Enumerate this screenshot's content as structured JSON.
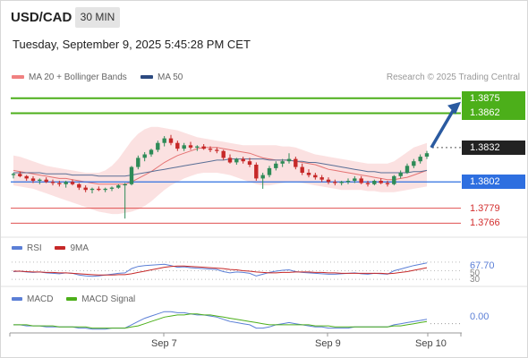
{
  "header": {
    "symbol": "USD/CAD",
    "timeframe": "30 MIN"
  },
  "datetime": "Tuesday, September 9, 2025 5:45:28 PM CET",
  "legend": {
    "bb": "MA 20 + Bollinger Bands",
    "ma50": "MA 50"
  },
  "credit": "Research © 2025 Trading Central",
  "colors": {
    "up": "#2e8b57",
    "down": "#c62828",
    "bands": "#f8c8c8",
    "ma20": "#e57373",
    "ma50": "#5a6f96",
    "resistance": "#4caf1a",
    "support": "#2e6fe0",
    "minor": "#e05050",
    "arrow": "#2a5aa0",
    "rsi": "#5b7fd6",
    "rsi_ma": "#c62828",
    "macd": "#5b7fd6",
    "macd_signal": "#4caf1a"
  },
  "levels": [
    {
      "value": "1.3875",
      "style": "resistance"
    },
    {
      "value": "1.3862",
      "style": "resistance"
    },
    {
      "value": "1.3832",
      "style": "current"
    },
    {
      "value": "1.3802",
      "style": "support"
    },
    {
      "value": "1.3779",
      "style": "minor"
    },
    {
      "value": "1.3766",
      "style": "minor"
    }
  ],
  "rsi": {
    "label": "RSI",
    "ma_label": "9MA",
    "value": "67.70",
    "ticks": [
      "50",
      "30"
    ]
  },
  "macd": {
    "label": "MACD",
    "signal_label": "MACD Signal",
    "value": "0.00"
  },
  "xaxis": {
    "ticks": [
      "Sep 7",
      "Sep 9",
      "Sep 10"
    ]
  },
  "chart_data": {
    "type": "candlestick",
    "title": "USD/CAD",
    "timeframe": "30 MIN",
    "ylim": [
      1.376,
      1.3885
    ],
    "candles": [
      [
        1.3808,
        1.381,
        1.3805,
        1.3809
      ],
      [
        1.3809,
        1.3811,
        1.3806,
        1.3807
      ],
      [
        1.3807,
        1.3808,
        1.3803,
        1.3805
      ],
      [
        1.3805,
        1.3807,
        1.3801,
        1.3803
      ],
      [
        1.3803,
        1.3805,
        1.38,
        1.3804
      ],
      [
        1.3804,
        1.3806,
        1.3801,
        1.3802
      ],
      [
        1.3802,
        1.3804,
        1.3799,
        1.3801
      ],
      [
        1.3801,
        1.3803,
        1.3798,
        1.38
      ],
      [
        1.38,
        1.3803,
        1.3797,
        1.3802
      ],
      [
        1.3802,
        1.3804,
        1.3799,
        1.38
      ],
      [
        1.38,
        1.3801,
        1.3795,
        1.3797
      ],
      [
        1.3797,
        1.3799,
        1.3793,
        1.3795
      ],
      [
        1.3795,
        1.3797,
        1.3792,
        1.3796
      ],
      [
        1.3796,
        1.3798,
        1.3794,
        1.3795
      ],
      [
        1.3795,
        1.3797,
        1.3793,
        1.3796
      ],
      [
        1.3796,
        1.3798,
        1.3794,
        1.3797
      ],
      [
        1.3797,
        1.38,
        1.3796,
        1.3799
      ],
      [
        1.3799,
        1.3801,
        1.377,
        1.38
      ],
      [
        1.38,
        1.3816,
        1.3799,
        1.3815
      ],
      [
        1.3815,
        1.3825,
        1.3813,
        1.3823
      ],
      [
        1.3823,
        1.3828,
        1.382,
        1.3826
      ],
      [
        1.3826,
        1.3831,
        1.3824,
        1.383
      ],
      [
        1.383,
        1.3838,
        1.3828,
        1.3836
      ],
      [
        1.3836,
        1.3842,
        1.3833,
        1.384
      ],
      [
        1.384,
        1.3843,
        1.3834,
        1.3836
      ],
      [
        1.3836,
        1.3838,
        1.3829,
        1.3831
      ],
      [
        1.3831,
        1.3836,
        1.3829,
        1.3834
      ],
      [
        1.3834,
        1.3837,
        1.383,
        1.3832
      ],
      [
        1.3832,
        1.3834,
        1.3829,
        1.3833
      ],
      [
        1.3833,
        1.3835,
        1.383,
        1.3831
      ],
      [
        1.3831,
        1.3833,
        1.3828,
        1.383
      ],
      [
        1.383,
        1.3832,
        1.3827,
        1.3829
      ],
      [
        1.3829,
        1.383,
        1.3821,
        1.3823
      ],
      [
        1.3823,
        1.3826,
        1.3818,
        1.3819
      ],
      [
        1.3819,
        1.3823,
        1.3817,
        1.3822
      ],
      [
        1.3822,
        1.3824,
        1.3818,
        1.382
      ],
      [
        1.382,
        1.3823,
        1.3815,
        1.3817
      ],
      [
        1.3817,
        1.3819,
        1.3803,
        1.3805
      ],
      [
        1.3805,
        1.381,
        1.3796,
        1.3808
      ],
      [
        1.3808,
        1.3816,
        1.3806,
        1.3814
      ],
      [
        1.3814,
        1.382,
        1.3812,
        1.3818
      ],
      [
        1.3818,
        1.3822,
        1.3815,
        1.382
      ],
      [
        1.382,
        1.3827,
        1.3818,
        1.3822
      ],
      [
        1.3822,
        1.3824,
        1.3813,
        1.3815
      ],
      [
        1.3815,
        1.3818,
        1.3808,
        1.381
      ],
      [
        1.381,
        1.3813,
        1.3806,
        1.3808
      ],
      [
        1.3808,
        1.381,
        1.3804,
        1.3806
      ],
      [
        1.3806,
        1.3808,
        1.3802,
        1.3804
      ],
      [
        1.3804,
        1.3806,
        1.38,
        1.3802
      ],
      [
        1.3802,
        1.3804,
        1.3799,
        1.3801
      ],
      [
        1.3801,
        1.3803,
        1.3799,
        1.3802
      ],
      [
        1.3802,
        1.3805,
        1.38,
        1.3803
      ],
      [
        1.3803,
        1.3807,
        1.3801,
        1.3805
      ],
      [
        1.3805,
        1.3807,
        1.38,
        1.3801
      ],
      [
        1.3801,
        1.3803,
        1.3798,
        1.38
      ],
      [
        1.38,
        1.3804,
        1.3799,
        1.3803
      ],
      [
        1.3803,
        1.3805,
        1.38,
        1.3801
      ],
      [
        1.3801,
        1.3803,
        1.3798,
        1.38
      ],
      [
        1.38,
        1.3808,
        1.3799,
        1.3807
      ],
      [
        1.3807,
        1.3812,
        1.3805,
        1.381
      ],
      [
        1.381,
        1.3818,
        1.3809,
        1.3816
      ],
      [
        1.3816,
        1.3822,
        1.3814,
        1.382
      ],
      [
        1.382,
        1.3826,
        1.3818,
        1.3824
      ],
      [
        1.3824,
        1.3829,
        1.3822,
        1.3827
      ]
    ],
    "ma20": [
      1.3812,
      1.3811,
      1.381,
      1.3809,
      1.3808,
      1.3807,
      1.3806,
      1.3805,
      1.3805,
      1.3804,
      1.3803,
      1.3802,
      1.3801,
      1.38,
      1.38,
      1.38,
      1.38,
      1.38,
      1.3802,
      1.3805,
      1.3808,
      1.3811,
      1.3815,
      1.3819,
      1.3822,
      1.3825,
      1.3827,
      1.3829,
      1.3831,
      1.3832,
      1.3832,
      1.3832,
      1.3831,
      1.383,
      1.3829,
      1.3828,
      1.3827,
      1.3825,
      1.3823,
      1.3822,
      1.3821,
      1.3821,
      1.3821,
      1.382,
      1.3819,
      1.3818,
      1.3817,
      1.3815,
      1.3813,
      1.3812,
      1.3811,
      1.381,
      1.3809,
      1.3808,
      1.3807,
      1.3806,
      1.3805,
      1.3804,
      1.3804,
      1.3805,
      1.3806,
      1.3808,
      1.381,
      1.3812
    ],
    "ma50": [
      1.381,
      1.381,
      1.381,
      1.381,
      1.381,
      1.3809,
      1.3809,
      1.3809,
      1.3809,
      1.3808,
      1.3808,
      1.3808,
      1.3808,
      1.3807,
      1.3807,
      1.3807,
      1.3807,
      1.3807,
      1.3808,
      1.3809,
      1.381,
      1.3811,
      1.3812,
      1.3813,
      1.3814,
      1.3815,
      1.3816,
      1.3817,
      1.3818,
      1.3819,
      1.382,
      1.3821,
      1.3821,
      1.3822,
      1.3822,
      1.3822,
      1.3822,
      1.3822,
      1.3822,
      1.3821,
      1.3821,
      1.3821,
      1.3821,
      1.382,
      1.382,
      1.3819,
      1.3819,
      1.3818,
      1.3817,
      1.3816,
      1.3815,
      1.3814,
      1.3813,
      1.3812,
      1.3811,
      1.3811,
      1.381,
      1.381,
      1.381,
      1.381,
      1.381,
      1.3811,
      1.3811,
      1.3812
    ],
    "bb_upper": [
      1.3825,
      1.3824,
      1.3822,
      1.382,
      1.3818,
      1.3816,
      1.3815,
      1.3814,
      1.3813,
      1.3812,
      1.3811,
      1.381,
      1.381,
      1.381,
      1.3812,
      1.3816,
      1.3822,
      1.383,
      1.3838,
      1.3844,
      1.3848,
      1.385,
      1.385,
      1.3849,
      1.3848,
      1.3847,
      1.3845,
      1.3843,
      1.3841,
      1.384,
      1.3839,
      1.3838,
      1.3837,
      1.3836,
      1.3835,
      1.3834,
      1.3834,
      1.3834,
      1.3834,
      1.3834,
      1.3834,
      1.3833,
      1.3833,
      1.3832,
      1.383,
      1.3828,
      1.3826,
      1.3825,
      1.3824,
      1.3823,
      1.3822,
      1.3821,
      1.382,
      1.3819,
      1.3818,
      1.3818,
      1.3818,
      1.3818,
      1.382,
      1.3824,
      1.3828,
      1.3832,
      1.3834,
      1.3836
    ],
    "bb_lower": [
      1.3799,
      1.3798,
      1.3797,
      1.3796,
      1.3794,
      1.3792,
      1.379,
      1.3788,
      1.3786,
      1.3784,
      1.3782,
      1.378,
      1.3778,
      1.3776,
      1.3775,
      1.3774,
      1.3774,
      1.3775,
      1.3776,
      1.3778,
      1.3781,
      1.3785,
      1.379,
      1.3795,
      1.3799,
      1.3802,
      1.3805,
      1.3807,
      1.3809,
      1.381,
      1.381,
      1.381,
      1.3809,
      1.3808,
      1.3806,
      1.3804,
      1.3802,
      1.38,
      1.3799,
      1.3799,
      1.38,
      1.3801,
      1.3802,
      1.3802,
      1.3801,
      1.38,
      1.3799,
      1.3798,
      1.3797,
      1.3796,
      1.3795,
      1.3795,
      1.3795,
      1.3795,
      1.3794,
      1.3794,
      1.3793,
      1.3793,
      1.3793,
      1.3794,
      1.3795,
      1.3796,
      1.3797,
      1.3798
    ],
    "projection": {
      "from": 1.3832,
      "to": 1.3875,
      "direction": "up"
    },
    "levels": [
      1.3875,
      1.3862,
      1.3832,
      1.3802,
      1.3779,
      1.3766
    ],
    "rsi": [
      48,
      49,
      47,
      46,
      47,
      45,
      44,
      43,
      45,
      44,
      40,
      38,
      37,
      38,
      40,
      42,
      44,
      45,
      55,
      60,
      62,
      63,
      64,
      65,
      62,
      58,
      59,
      57,
      56,
      55,
      54,
      53,
      48,
      45,
      47,
      46,
      44,
      38,
      42,
      46,
      49,
      51,
      52,
      48,
      46,
      45,
      44,
      43,
      42,
      42,
      43,
      44,
      45,
      43,
      42,
      44,
      43,
      42,
      50,
      54,
      58,
      62,
      65,
      68
    ],
    "rsi_ma": [
      49,
      49,
      48,
      47,
      47,
      46,
      46,
      45,
      45,
      44,
      43,
      42,
      41,
      40,
      40,
      40,
      41,
      41,
      43,
      46,
      49,
      52,
      55,
      58,
      60,
      61,
      61,
      60,
      59,
      58,
      57,
      56,
      55,
      53,
      52,
      50,
      49,
      47,
      46,
      45,
      45,
      46,
      46,
      47,
      47,
      47,
      46,
      46,
      45,
      45,
      44,
      44,
      44,
      44,
      44,
      44,
      44,
      43,
      44,
      46,
      48,
      51,
      54,
      57
    ],
    "macd": [
      -0.0001,
      -0.0001,
      -0.0002,
      -0.0002,
      -0.0002,
      -0.0003,
      -0.0003,
      -0.0003,
      -0.0003,
      -0.0003,
      -0.0004,
      -0.0004,
      -0.0005,
      -0.0005,
      -0.0005,
      -0.0004,
      -0.0004,
      -0.0004,
      -0.0001,
      0.0002,
      0.0005,
      0.0007,
      0.0009,
      0.0011,
      0.0011,
      0.001,
      0.001,
      0.0009,
      0.0008,
      0.0008,
      0.0007,
      0.0006,
      0.0004,
      0.0002,
      0.0001,
      0.0,
      -0.0001,
      -0.0004,
      -0.0004,
      -0.0003,
      -0.0001,
      0.0,
      0.0001,
      0.0,
      -0.0001,
      -0.0002,
      -0.0003,
      -0.0003,
      -0.0004,
      -0.0004,
      -0.0004,
      -0.0004,
      -0.0003,
      -0.0003,
      -0.0003,
      -0.0003,
      -0.0003,
      -0.0003,
      -0.0001,
      0.0,
      0.0001,
      0.0002,
      0.0003,
      0.0004
    ],
    "macd_signal": [
      -0.0001,
      -0.0001,
      -0.0001,
      -0.0002,
      -0.0002,
      -0.0002,
      -0.0002,
      -0.0003,
      -0.0003,
      -0.0003,
      -0.0003,
      -0.0003,
      -0.0004,
      -0.0004,
      -0.0004,
      -0.0004,
      -0.0004,
      -0.0004,
      -0.0003,
      -0.0002,
      0.0,
      0.0002,
      0.0004,
      0.0006,
      0.0007,
      0.0008,
      0.0008,
      0.0009,
      0.0009,
      0.0008,
      0.0008,
      0.0007,
      0.0006,
      0.0005,
      0.0004,
      0.0003,
      0.0002,
      0.0001,
      0.0,
      -0.0001,
      -0.0001,
      -0.0001,
      -0.0001,
      -0.0001,
      -0.0001,
      -0.0001,
      -0.0002,
      -0.0002,
      -0.0002,
      -0.0003,
      -0.0003,
      -0.0003,
      -0.0003,
      -0.0003,
      -0.0003,
      -0.0003,
      -0.0003,
      -0.0003,
      -0.0002,
      -0.0002,
      -0.0001,
      0.0,
      0.0001,
      0.0002
    ]
  }
}
